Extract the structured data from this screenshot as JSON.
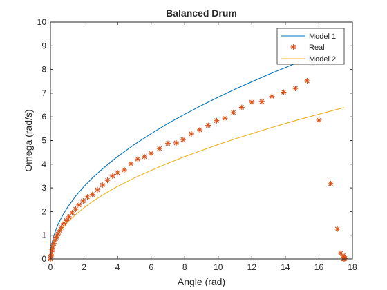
{
  "chart_data": {
    "type": "line",
    "title": "Balanced Drum",
    "xlabel": "Angle (rad)",
    "ylabel": "Omega (rad/s)",
    "xlim": [
      0,
      18
    ],
    "ylim": [
      0,
      10
    ],
    "xticks": [
      0,
      2,
      4,
      6,
      8,
      10,
      12,
      14,
      16,
      18
    ],
    "yticks": [
      0,
      1,
      2,
      3,
      4,
      5,
      6,
      7,
      8,
      9,
      10
    ],
    "grid": false,
    "legend_position": "top-right",
    "series": [
      {
        "name": "Model 1",
        "style": "line",
        "color": "#0072BD",
        "x": [
          0,
          0.05,
          0.1,
          0.2,
          0.35,
          0.5,
          0.75,
          1,
          1.5,
          2,
          2.5,
          3,
          3.5,
          4,
          5,
          6,
          7,
          8,
          9,
          10,
          11,
          12,
          13,
          14,
          15,
          15.5,
          16,
          16.5,
          17,
          17.2
        ],
        "y": [
          0,
          0.48,
          0.69,
          0.97,
          1.28,
          1.53,
          1.87,
          2.16,
          2.65,
          3.06,
          3.42,
          3.74,
          4.04,
          4.32,
          4.83,
          5.29,
          5.72,
          6.11,
          6.48,
          6.83,
          7.17,
          7.48,
          7.79,
          8.08,
          8.37,
          8.51,
          8.64,
          8.78,
          8.91,
          8.96
        ]
      },
      {
        "name": "Real",
        "style": "markers",
        "marker": "*",
        "color": "#D95319",
        "x": [
          0,
          0.02,
          0.04,
          0.07,
          0.1,
          0.14,
          0.2,
          0.27,
          0.35,
          0.45,
          0.55,
          0.65,
          0.8,
          0.95,
          1.1,
          1.3,
          1.5,
          1.7,
          1.95,
          2.2,
          2.5,
          2.8,
          3.1,
          3.4,
          3.7,
          4.0,
          4.4,
          4.8,
          5.2,
          5.6,
          6.0,
          6.5,
          7.0,
          7.5,
          7.9,
          8.4,
          8.9,
          9.4,
          9.9,
          10.4,
          10.9,
          11.4,
          12.0,
          12.6,
          13.2,
          13.9,
          14.6,
          15.3,
          16.0,
          16.7,
          17.1,
          17.3,
          17.45,
          17.5,
          17.55,
          17.5,
          17.45
        ],
        "y": [
          0,
          0.05,
          0.12,
          0.25,
          0.38,
          0.5,
          0.65,
          0.78,
          0.92,
          1.05,
          1.2,
          1.33,
          1.5,
          1.62,
          1.78,
          1.95,
          2.1,
          2.28,
          2.45,
          2.62,
          2.72,
          2.92,
          3.12,
          3.32,
          3.5,
          3.64,
          3.76,
          4.02,
          4.22,
          4.32,
          4.46,
          4.66,
          4.88,
          4.9,
          5.04,
          5.28,
          5.45,
          5.64,
          5.84,
          5.94,
          6.18,
          6.4,
          6.62,
          6.64,
          6.86,
          7.04,
          7.2,
          7.52,
          5.86,
          3.18,
          1.26,
          0.24,
          0.14,
          0.06,
          0.02,
          0.0,
          0.0
        ]
      },
      {
        "name": "Model 2",
        "style": "line",
        "color": "#EDB120",
        "x": [
          0,
          0.05,
          0.1,
          0.2,
          0.35,
          0.5,
          0.75,
          1,
          1.5,
          2,
          2.5,
          3,
          3.5,
          4,
          5,
          6,
          7,
          8,
          9,
          10,
          11,
          12,
          13,
          14,
          15,
          16,
          17,
          17.5
        ],
        "y": [
          0,
          0.34,
          0.48,
          0.68,
          0.9,
          1.08,
          1.32,
          1.53,
          1.87,
          2.16,
          2.42,
          2.65,
          2.86,
          3.06,
          3.42,
          3.74,
          4.04,
          4.32,
          4.58,
          4.83,
          5.07,
          5.29,
          5.51,
          5.72,
          5.92,
          6.11,
          6.3,
          6.39
        ]
      }
    ]
  }
}
